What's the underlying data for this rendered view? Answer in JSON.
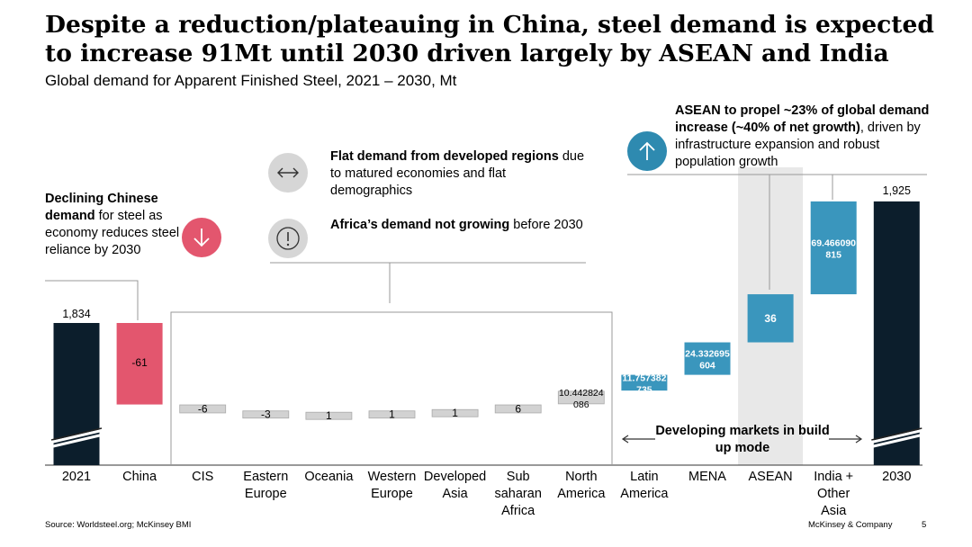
{
  "title": {
    "line1": "Despite a reduction/plateauing in China, steel demand is expected",
    "line2": "to increase 91Mt until 2030 driven largely by ASEAN and India"
  },
  "subtitle": "Global demand for Apparent Finished Steel, 2021 – 2030, Mt",
  "annotations": {
    "china": {
      "bold": "Declining Chinese demand",
      "rest": " for steel as economy reduces steel reliance by 2030"
    },
    "developed": {
      "bold": "Flat demand from developed regions",
      "rest": " due to matured economies and flat demographics"
    },
    "africa": {
      "bold": "Africa’s demand not growing",
      "rest": " before 2030"
    },
    "asean": {
      "bold": "ASEAN to propel ~23% of global demand increase (~40% of net growth)",
      "rest": ", driven by infrastructure expansion and robust population growth"
    },
    "developing": "Developing markets in build up mode"
  },
  "icons": {
    "down": "down-arrow-icon",
    "horizontal": "horizontal-double-arrow-icon",
    "exclamation": "exclamation-icon",
    "up": "up-arrow-icon"
  },
  "colors": {
    "total": "#0c1e2c",
    "china": "#e3566e",
    "flat": "#d2d2d2",
    "growth": "#3a96bd",
    "teal_icon": "#2e8ab0",
    "grey_icon": "#d6d6d6",
    "asean_highlight": "#e8e8e8"
  },
  "chart_data": {
    "type": "waterfall",
    "title": "Global demand for Apparent Finished Steel, 2021 – 2030, Mt",
    "start": {
      "label": "2021",
      "value": 1834,
      "display": "1,834"
    },
    "end": {
      "label": "2030",
      "value": 1925,
      "display": "1,925"
    },
    "steps": [
      {
        "label": "China",
        "value": -61,
        "display": "-61"
      },
      {
        "label": "CIS",
        "value": -6,
        "display": "-6"
      },
      {
        "label": "Eastern Europe",
        "value": -3,
        "display": "-3"
      },
      {
        "label": "Oceania",
        "value": 1,
        "display": "1"
      },
      {
        "label": "Western Europe",
        "value": 1,
        "display": "1"
      },
      {
        "label": "Developed Asia",
        "value": 1,
        "display": "1"
      },
      {
        "label": "Sub saharan Africa",
        "value": 6,
        "display": "6"
      },
      {
        "label": "North America",
        "value": 10.4,
        "display": "10.442824 086"
      },
      {
        "label": "Latin America",
        "value": 11.8,
        "display": "11.757382 735"
      },
      {
        "label": "MENA",
        "value": 24.3,
        "display": "24.332695 604"
      },
      {
        "label": "ASEAN",
        "value": 36,
        "display": "36"
      },
      {
        "label": "India + Other Asia",
        "value": 69.5,
        "display": "69.466090 815"
      }
    ],
    "categories": [
      "2021",
      "China",
      "CIS",
      "Eastern Europe",
      "Oceania",
      "Western Europe",
      "Developed Asia",
      "Sub saharan Africa",
      "North America",
      "Latin America",
      "MENA",
      "ASEAN",
      "India + Other Asia",
      "2030"
    ],
    "axis_break": true,
    "highlight": "ASEAN"
  },
  "footer": {
    "source": "Source: Worldsteel.org; McKinsey BMI",
    "company": "McKinsey & Company",
    "page": "5"
  }
}
